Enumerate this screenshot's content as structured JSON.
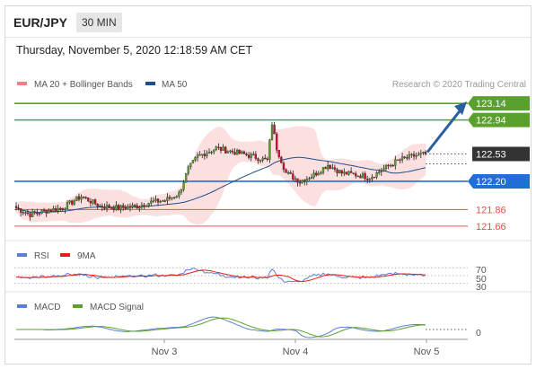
{
  "header": {
    "symbol": "EUR/JPY",
    "interval": "30 MIN"
  },
  "timestamp": "Thursday, November 5, 2020 12:18:59 AM CET",
  "legend": {
    "ma20": {
      "label": "MA 20 + Bollinger Bands",
      "color": "#f08080"
    },
    "ma50": {
      "label": "MA 50",
      "color": "#1f4e8c"
    },
    "rsi": {
      "label": "RSI",
      "color": "#5b7fd6"
    },
    "ma9": {
      "label": "9MA",
      "color": "#e0201a"
    },
    "macd": {
      "label": "MACD",
      "color": "#5b7fd6"
    },
    "macd_signal": {
      "label": "MACD Signal",
      "color": "#5aa02c"
    }
  },
  "credit": "Research © 2020 Trading Central",
  "colors": {
    "resistance": "#5aa02c",
    "pivot": "#1f6fd6",
    "support": "#e05050",
    "current": "#333333",
    "arrow": "#2b5fa3",
    "bull": "#5aa02c",
    "bear": "#c8102e"
  },
  "chart_data": {
    "type": "candlestick",
    "title": "EUR/JPY",
    "ylim": [
      121.55,
      123.25
    ],
    "x_ticks": [
      "Nov 3",
      "Nov 4",
      "Nov 5"
    ],
    "levels": [
      {
        "label": "123.14",
        "value": 123.14,
        "kind": "resistance"
      },
      {
        "label": "122.94",
        "value": 122.94,
        "kind": "resistance"
      },
      {
        "label": "122.53",
        "value": 122.53,
        "kind": "current"
      },
      {
        "label": "122.20",
        "value": 122.2,
        "kind": "pivot"
      },
      {
        "label": "121.86",
        "value": 121.86,
        "kind": "support"
      },
      {
        "label": "121.66",
        "value": 121.66,
        "kind": "support"
      }
    ],
    "anchors": [
      [
        0,
        121.88
      ],
      [
        6,
        121.8
      ],
      [
        12,
        121.84
      ],
      [
        20,
        121.88
      ],
      [
        28,
        122.02
      ],
      [
        36,
        121.9
      ],
      [
        44,
        121.88
      ],
      [
        52,
        121.9
      ],
      [
        58,
        121.95
      ],
      [
        64,
        121.97
      ],
      [
        70,
        122.05
      ],
      [
        74,
        122.35
      ],
      [
        78,
        122.5
      ],
      [
        86,
        122.6
      ],
      [
        94,
        122.55
      ],
      [
        102,
        122.5
      ],
      [
        108,
        122.45
      ],
      [
        110,
        122.9
      ],
      [
        112,
        122.6
      ],
      [
        116,
        122.3
      ],
      [
        122,
        122.2
      ],
      [
        128,
        122.28
      ],
      [
        134,
        122.4
      ],
      [
        140,
        122.3
      ],
      [
        146,
        122.28
      ],
      [
        152,
        122.25
      ],
      [
        158,
        122.35
      ],
      [
        164,
        122.45
      ],
      [
        170,
        122.5
      ],
      [
        176,
        122.53
      ]
    ],
    "prediction": {
      "from": 122.53,
      "to": 123.14
    },
    "rsi": {
      "levels": [
        "70",
        "50",
        "30"
      ],
      "ylim": [
        20,
        80
      ]
    },
    "macd": {
      "levels": [
        "0"
      ]
    }
  }
}
